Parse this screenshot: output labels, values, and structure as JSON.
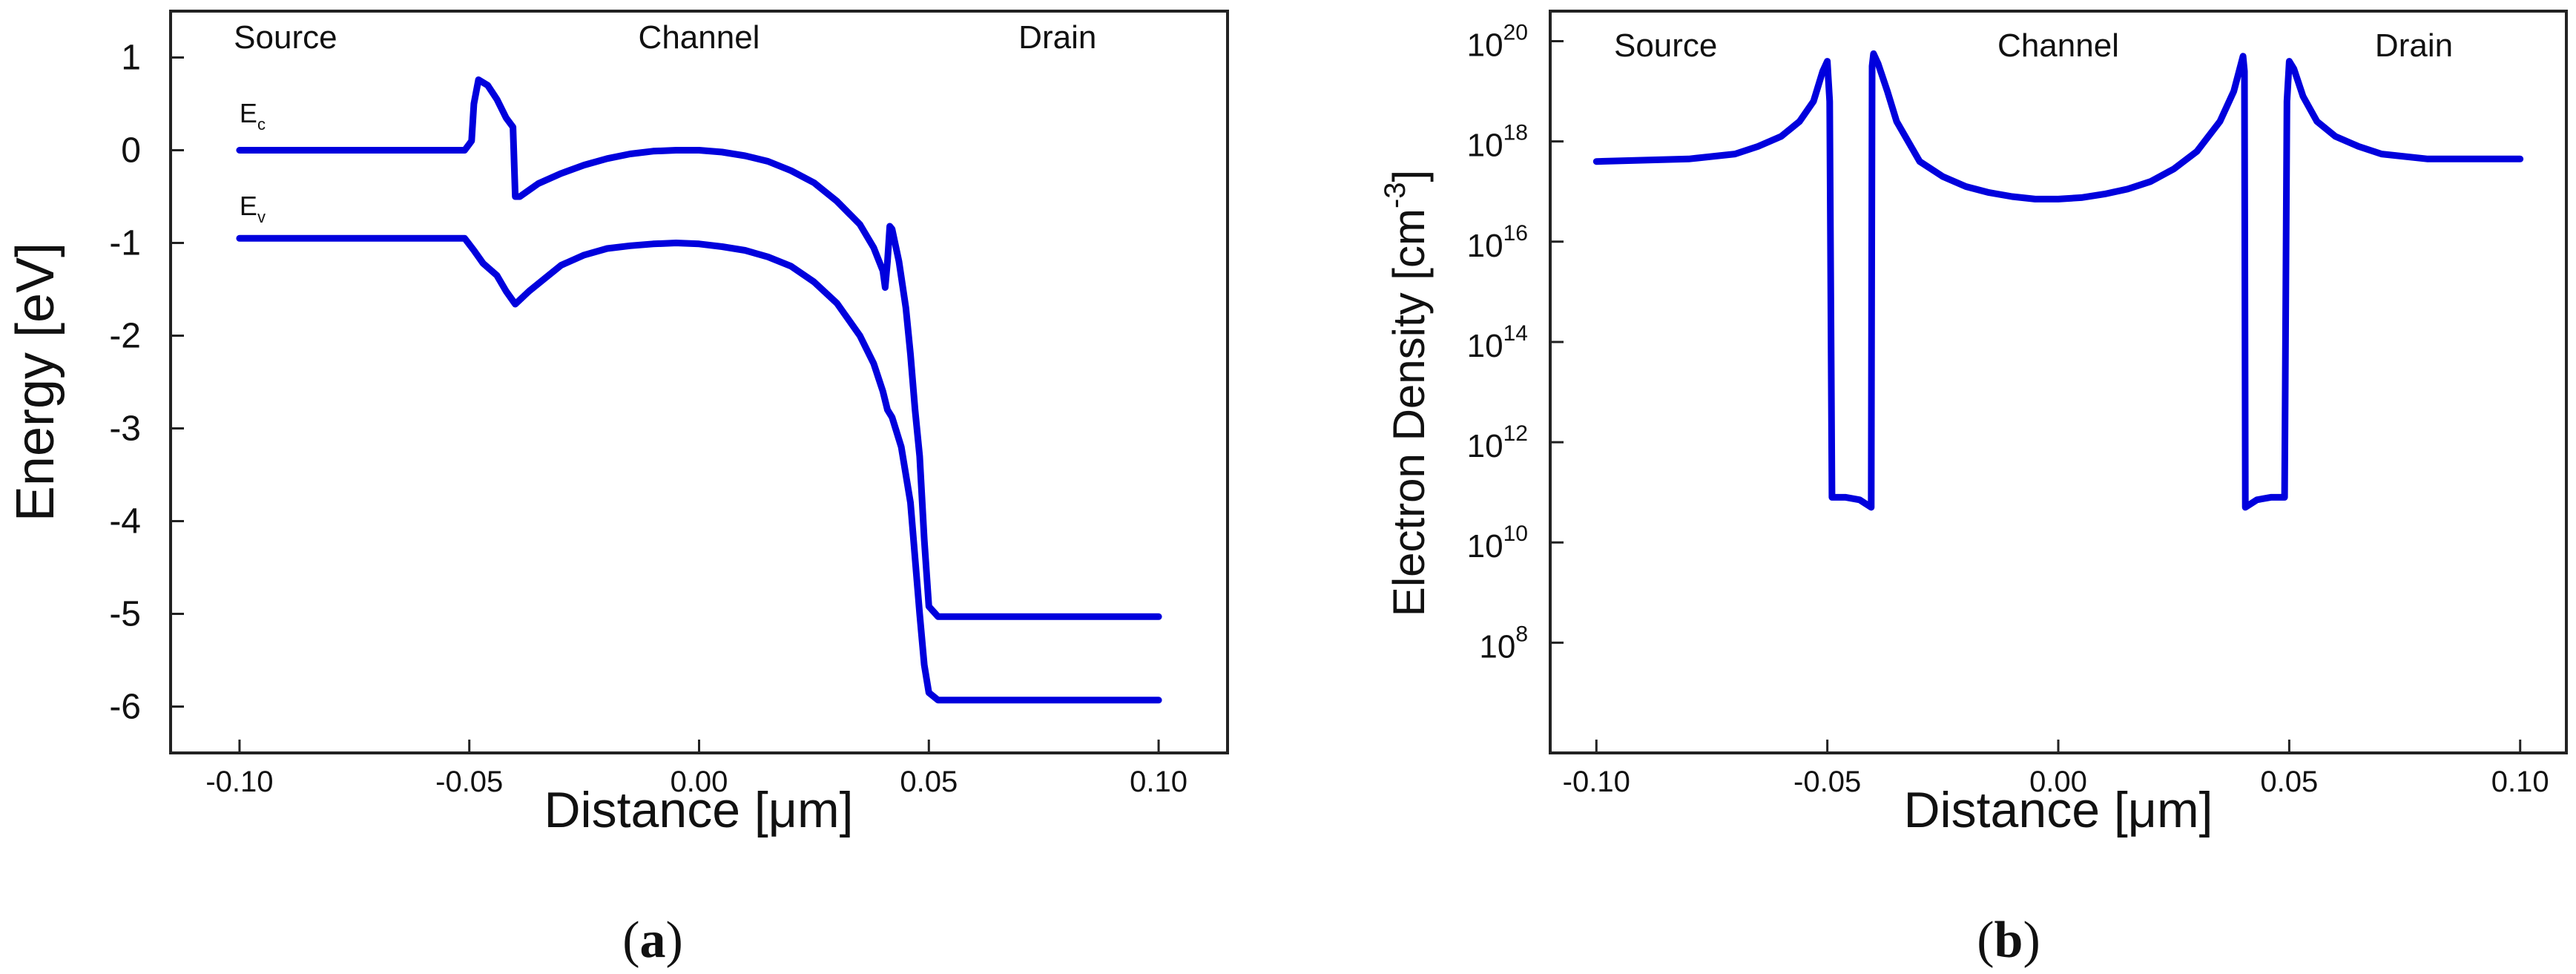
{
  "chart_data": [
    {
      "id": "a",
      "type": "line",
      "panel_label": "a",
      "xlabel": "Distance [μm]",
      "ylabel": "Energy [eV]",
      "xlim": [
        -0.115,
        0.115
      ],
      "ylim": [
        -6.5,
        1.5
      ],
      "x_ticks": [
        -0.1,
        -0.05,
        0.0,
        0.05,
        0.1
      ],
      "x_tick_labels": [
        "-0.10",
        "-0.05",
        "0.00",
        "0.05",
        "0.10"
      ],
      "y_ticks": [
        1,
        0,
        -1,
        -2,
        -3,
        -4,
        -5,
        -6
      ],
      "y_tick_labels": [
        "1",
        "0",
        "-1",
        "-2",
        "-3",
        "-4",
        "-5",
        "-6"
      ],
      "regions": [
        {
          "text": "Source",
          "x": -0.09,
          "y": 1.1
        },
        {
          "text": "Channel",
          "x": 0.0,
          "y": 1.1
        },
        {
          "text": "Drain",
          "x": 0.078,
          "y": 1.1
        }
      ],
      "color": "#0000dd",
      "series": [
        {
          "name": "Ec",
          "label_main": "E",
          "label_sub": "c",
          "label_pos": {
            "x": -0.1,
            "y": 0.3
          },
          "points": [
            [
              -0.1,
              0.0
            ],
            [
              -0.051,
              0.0
            ],
            [
              -0.0495,
              0.1
            ],
            [
              -0.049,
              0.5
            ],
            [
              -0.048,
              0.76
            ],
            [
              -0.046,
              0.7
            ],
            [
              -0.044,
              0.55
            ],
            [
              -0.042,
              0.35
            ],
            [
              -0.0405,
              0.25
            ],
            [
              -0.04,
              -0.5
            ],
            [
              -0.039,
              -0.5
            ],
            [
              -0.035,
              -0.36
            ],
            [
              -0.03,
              -0.25
            ],
            [
              -0.025,
              -0.16
            ],
            [
              -0.02,
              -0.09
            ],
            [
              -0.015,
              -0.04
            ],
            [
              -0.01,
              -0.01
            ],
            [
              -0.005,
              0.0
            ],
            [
              0.0,
              0.0
            ],
            [
              0.005,
              -0.02
            ],
            [
              0.01,
              -0.06
            ],
            [
              0.015,
              -0.12
            ],
            [
              0.02,
              -0.22
            ],
            [
              0.025,
              -0.35
            ],
            [
              0.03,
              -0.55
            ],
            [
              0.035,
              -0.8
            ],
            [
              0.038,
              -1.05
            ],
            [
              0.04,
              -1.3
            ],
            [
              0.0405,
              -1.48
            ],
            [
              0.041,
              -1.2
            ],
            [
              0.0415,
              -0.82
            ],
            [
              0.042,
              -0.85
            ],
            [
              0.0435,
              -1.2
            ],
            [
              0.045,
              -1.7
            ],
            [
              0.046,
              -2.2
            ],
            [
              0.047,
              -2.8
            ],
            [
              0.048,
              -3.3
            ],
            [
              0.049,
              -4.2
            ],
            [
              0.05,
              -4.92
            ],
            [
              0.052,
              -5.03
            ],
            [
              0.1,
              -5.03
            ]
          ]
        },
        {
          "name": "Ev",
          "label_main": "E",
          "label_sub": "v",
          "label_pos": {
            "x": -0.1,
            "y": -0.7
          },
          "points": [
            [
              -0.1,
              -0.95
            ],
            [
              -0.051,
              -0.95
            ],
            [
              -0.049,
              -1.08
            ],
            [
              -0.047,
              -1.22
            ],
            [
              -0.044,
              -1.35
            ],
            [
              -0.042,
              -1.52
            ],
            [
              -0.04,
              -1.66
            ],
            [
              -0.037,
              -1.52
            ],
            [
              -0.033,
              -1.36
            ],
            [
              -0.03,
              -1.24
            ],
            [
              -0.025,
              -1.13
            ],
            [
              -0.02,
              -1.06
            ],
            [
              -0.015,
              -1.03
            ],
            [
              -0.01,
              -1.01
            ],
            [
              -0.005,
              -1.0
            ],
            [
              0.0,
              -1.01
            ],
            [
              0.005,
              -1.04
            ],
            [
              0.01,
              -1.08
            ],
            [
              0.015,
              -1.15
            ],
            [
              0.02,
              -1.25
            ],
            [
              0.025,
              -1.42
            ],
            [
              0.03,
              -1.65
            ],
            [
              0.035,
              -2.0
            ],
            [
              0.038,
              -2.3
            ],
            [
              0.04,
              -2.6
            ],
            [
              0.041,
              -2.8
            ],
            [
              0.042,
              -2.88
            ],
            [
              0.044,
              -3.2
            ],
            [
              0.046,
              -3.8
            ],
            [
              0.047,
              -4.4
            ],
            [
              0.048,
              -5.0
            ],
            [
              0.049,
              -5.55
            ],
            [
              0.05,
              -5.85
            ],
            [
              0.052,
              -5.93
            ],
            [
              0.1,
              -5.93
            ]
          ]
        }
      ]
    },
    {
      "id": "b",
      "type": "line",
      "panel_label": "b",
      "yscale": "log",
      "xlabel": "Distance [μm]",
      "ylabel": "Electron Density [cm",
      "ylabel_sup": "-3",
      "ylabel_end": "]",
      "xlim": [
        -0.11,
        0.11
      ],
      "ylim_exp": [
        5.8,
        20.6
      ],
      "x_ticks": [
        -0.1,
        -0.05,
        0.0,
        0.05,
        0.1
      ],
      "x_tick_labels": [
        "-0.10",
        "-0.05",
        "0.00",
        "0.05",
        "0.10"
      ],
      "y_tick_exps": [
        20,
        18,
        16,
        14,
        12,
        10,
        8
      ],
      "y_tick_labels": [
        {
          "base": "10",
          "exp": "20"
        },
        {
          "base": "10",
          "exp": "18"
        },
        {
          "base": "10",
          "exp": "16"
        },
        {
          "base": "10",
          "exp": "14"
        },
        {
          "base": "10",
          "exp": "12"
        },
        {
          "base": "10",
          "exp": "10"
        },
        {
          "base": "10",
          "exp": "8"
        }
      ],
      "regions": [
        {
          "text": "Source",
          "x": -0.085,
          "y": 19.7
        },
        {
          "text": "Channel",
          "x": 0.0,
          "y": 19.7
        },
        {
          "text": "Drain",
          "x": 0.077,
          "y": 19.7
        }
      ],
      "color": "#0000dd",
      "series": [
        {
          "name": "Electron density",
          "points": [
            [
              -0.1,
              17.6
            ],
            [
              -0.08,
              17.65
            ],
            [
              -0.07,
              17.75
            ],
            [
              -0.065,
              17.9
            ],
            [
              -0.06,
              18.1
            ],
            [
              -0.056,
              18.4
            ],
            [
              -0.053,
              18.8
            ],
            [
              -0.051,
              19.4
            ],
            [
              -0.05,
              19.6
            ],
            [
              -0.0495,
              18.8
            ],
            [
              -0.049,
              10.9
            ],
            [
              -0.046,
              10.9
            ],
            [
              -0.043,
              10.85
            ],
            [
              -0.0405,
              10.7
            ],
            [
              -0.0403,
              19.5
            ],
            [
              -0.04,
              19.75
            ],
            [
              -0.039,
              19.55
            ],
            [
              -0.037,
              19.0
            ],
            [
              -0.035,
              18.4
            ],
            [
              -0.03,
              17.6
            ],
            [
              -0.025,
              17.3
            ],
            [
              -0.02,
              17.1
            ],
            [
              -0.015,
              16.98
            ],
            [
              -0.01,
              16.9
            ],
            [
              -0.005,
              16.85
            ],
            [
              0.0,
              16.85
            ],
            [
              0.005,
              16.88
            ],
            [
              0.01,
              16.95
            ],
            [
              0.015,
              17.05
            ],
            [
              0.02,
              17.2
            ],
            [
              0.025,
              17.45
            ],
            [
              0.03,
              17.8
            ],
            [
              0.035,
              18.4
            ],
            [
              0.038,
              19.0
            ],
            [
              0.04,
              19.7
            ],
            [
              0.0403,
              19.4
            ],
            [
              0.0405,
              10.7
            ],
            [
              0.043,
              10.85
            ],
            [
              0.046,
              10.9
            ],
            [
              0.049,
              10.9
            ],
            [
              0.0495,
              18.8
            ],
            [
              0.05,
              19.6
            ],
            [
              0.051,
              19.45
            ],
            [
              0.053,
              18.9
            ],
            [
              0.056,
              18.4
            ],
            [
              0.06,
              18.1
            ],
            [
              0.065,
              17.9
            ],
            [
              0.07,
              17.75
            ],
            [
              0.08,
              17.65
            ],
            [
              0.1,
              17.65
            ]
          ]
        }
      ]
    }
  ]
}
